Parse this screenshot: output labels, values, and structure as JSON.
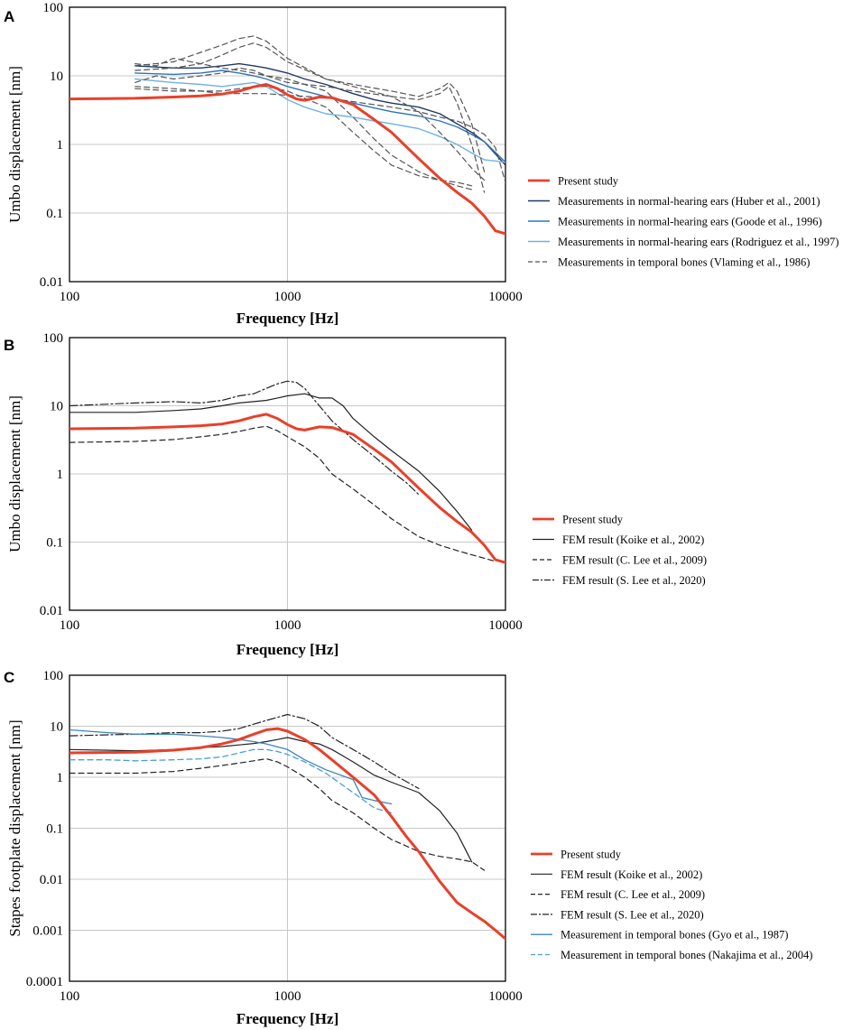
{
  "colors": {
    "present": "#e8402a",
    "huber": "#1f3864",
    "goode": "#2e75b6",
    "rodriguez": "#6db3e6",
    "vlaming": "#555555",
    "koike": "#222222",
    "clee": "#222222",
    "slee": "#222222",
    "gyo": "#3d85b8",
    "nakajima": "#4a9fd8",
    "grid": "#c8c8c8"
  },
  "chart_data": [
    {
      "panel": "A",
      "type": "line",
      "xscale": "log",
      "yscale": "log",
      "xlim": [
        100,
        10000
      ],
      "ylim": [
        0.01,
        100
      ],
      "xticks": [
        "100",
        "1000",
        "10000"
      ],
      "yticks": [
        "0.01",
        "0.1",
        "1",
        "10",
        "100"
      ],
      "xlabel": "Frequency [Hz]",
      "ylabel": "Umbo displacement [nm]",
      "legend_position": "right",
      "series": [
        {
          "name": "Present study",
          "color_key": "present",
          "dash": "solid",
          "width": 3,
          "x": [
            100,
            200,
            300,
            400,
            500,
            600,
            700,
            800,
            900,
            1000,
            1100,
            1200,
            1400,
            1600,
            2000,
            2500,
            3000,
            4000,
            5000,
            6000,
            7000,
            8000,
            9000,
            10000
          ],
          "y": [
            4.6,
            4.7,
            4.9,
            5.1,
            5.4,
            6.0,
            6.9,
            7.5,
            6.5,
            5.3,
            4.6,
            4.4,
            4.9,
            4.8,
            3.8,
            2.3,
            1.5,
            0.62,
            0.32,
            0.2,
            0.14,
            0.09,
            0.055,
            0.05
          ]
        },
        {
          "name": "Measurements in normal-hearing ears (Huber et al., 2001)",
          "color_key": "huber",
          "dash": "solid",
          "width": 1.4,
          "x": [
            200,
            300,
            400,
            500,
            600,
            700,
            800,
            1000,
            1200,
            1500,
            2000,
            2500,
            3000,
            4000,
            5000,
            6000,
            7000,
            8000,
            10000
          ],
          "y": [
            14,
            13,
            13,
            14,
            15,
            14,
            13,
            11,
            9,
            7.5,
            5.5,
            4.5,
            4,
            3.5,
            2.8,
            2,
            1.5,
            1.1,
            0.5
          ]
        },
        {
          "name": "Measurements in normal-hearing ears (Goode et al., 1996)",
          "color_key": "goode",
          "dash": "solid",
          "width": 1.4,
          "x": [
            200,
            300,
            400,
            500,
            600,
            700,
            800,
            1000,
            1200,
            1500,
            2000,
            2500,
            3000,
            4000,
            5000,
            6000,
            7000,
            8000,
            10000
          ],
          "y": [
            11,
            10.5,
            11,
            12,
            11,
            10,
            9,
            7,
            6,
            5,
            4,
            3.4,
            3,
            2.6,
            2.2,
            1.8,
            1.4,
            1.1,
            0.55
          ]
        },
        {
          "name": "Measurements in normal-hearing ears (Rodriguez et al., 1997)",
          "color_key": "rodriguez",
          "dash": "solid",
          "width": 1.4,
          "x": [
            200,
            300,
            400,
            500,
            600,
            700,
            800,
            1000,
            1200,
            1500,
            2000,
            2500,
            3000,
            4000,
            5000,
            6000,
            7000,
            8000,
            10000
          ],
          "y": [
            9,
            8,
            7.5,
            7,
            7.5,
            8,
            7,
            4.5,
            3.5,
            2.8,
            2.5,
            2.2,
            2,
            1.7,
            1.3,
            1,
            0.75,
            0.6,
            0.55
          ]
        },
        {
          "name": "Measurements in temporal bones (Vlaming et al., 1986)",
          "color_key": "vlaming",
          "dash": "dash",
          "width": 1.2,
          "group": true,
          "lines": [
            {
              "x": [
                200,
                300,
                400,
                500,
                600,
                700,
                800,
                1000,
                1500,
                2000,
                3000,
                4000,
                5000,
                6000,
                7000,
                8000
              ],
              "y": [
                14,
                16,
                22,
                28,
                35,
                38,
                32,
                18,
                9,
                7,
                5,
                3,
                1.5,
                0.8,
                0.45,
                0.3
              ]
            },
            {
              "x": [
                200,
                300,
                400,
                500,
                600,
                700,
                800,
                1000,
                1500,
                2000,
                3000,
                4000,
                5000,
                5500,
                6000,
                7000,
                8000
              ],
              "y": [
                12,
                13,
                15,
                20,
                26,
                30,
                26,
                16,
                9,
                7.5,
                6,
                5,
                6.5,
                8,
                6,
                2,
                0.4
              ]
            },
            {
              "x": [
                200,
                250,
                300,
                400,
                500,
                600,
                700,
                800,
                1000,
                1500,
                2000,
                3000,
                4000,
                5000,
                5500,
                6000,
                7000,
                8000
              ],
              "y": [
                8,
                10,
                9,
                10,
                11,
                13,
                12,
                10,
                8,
                7,
                6,
                5,
                4.5,
                5.5,
                7,
                4,
                1,
                0.2
              ]
            },
            {
              "x": [
                200,
                300,
                400,
                500,
                600,
                700,
                800,
                1000,
                1500,
                2000,
                3000,
                4000,
                5000,
                6000,
                7000,
                8000,
                9000,
                10000
              ],
              "y": [
                7,
                6.5,
                6,
                5.5,
                5.5,
                5.5,
                5.5,
                5.2,
                4.8,
                4.2,
                3.5,
                3,
                2.5,
                2.2,
                1.8,
                1.4,
                0.9,
                0.28
              ]
            },
            {
              "x": [
                200,
                300,
                400,
                500,
                600,
                700,
                800,
                1000,
                1500,
                2000,
                2500,
                3000,
                4000,
                5000,
                6000,
                7000
              ],
              "y": [
                6.5,
                6,
                6,
                6,
                6.5,
                7,
                7,
                6,
                3.5,
                1.5,
                0.8,
                0.5,
                0.35,
                0.3,
                0.28,
                0.25
              ]
            },
            {
              "x": [
                200,
                250,
                300,
                400,
                500,
                600,
                700,
                800,
                1000,
                1500,
                2000,
                2500,
                3000,
                4000,
                5000,
                6000,
                7000
              ],
              "y": [
                15,
                14,
                18,
                15,
                13,
                12,
                11,
                10,
                9,
                6,
                2.5,
                1.2,
                0.7,
                0.4,
                0.3,
                0.25,
                0.22
              ]
            }
          ]
        }
      ]
    },
    {
      "panel": "B",
      "type": "line",
      "xscale": "log",
      "yscale": "log",
      "xlim": [
        100,
        10000
      ],
      "ylim": [
        0.01,
        100
      ],
      "xticks": [
        "100",
        "1000",
        "10000"
      ],
      "yticks": [
        "0.01",
        "0.1",
        "1",
        "10",
        "100"
      ],
      "xlabel": "Frequency [Hz]",
      "ylabel": "Umbo displacement [nm]",
      "legend_position": "right",
      "series": [
        {
          "name": "Present study",
          "color_key": "present",
          "dash": "solid",
          "width": 3,
          "x": [
            100,
            200,
            300,
            400,
            500,
            600,
            700,
            800,
            900,
            1000,
            1100,
            1200,
            1400,
            1600,
            2000,
            2500,
            3000,
            4000,
            5000,
            6000,
            7000,
            8000,
            9000,
            10000
          ],
          "y": [
            4.6,
            4.7,
            4.9,
            5.1,
            5.4,
            6.0,
            6.9,
            7.5,
            6.5,
            5.3,
            4.6,
            4.4,
            4.9,
            4.8,
            3.8,
            2.3,
            1.5,
            0.62,
            0.32,
            0.2,
            0.14,
            0.09,
            0.055,
            0.05
          ]
        },
        {
          "name": "FEM result (Koike et al., 2002)",
          "color_key": "koike",
          "dash": "solid",
          "width": 1.2,
          "x": [
            100,
            200,
            300,
            400,
            500,
            600,
            700,
            800,
            900,
            1000,
            1200,
            1400,
            1600,
            1800,
            2000,
            2500,
            3000,
            4000,
            5000,
            6000,
            7000
          ],
          "y": [
            8,
            8,
            8.5,
            9,
            10,
            11,
            11.5,
            12,
            13,
            14,
            15,
            13,
            13,
            10,
            6.5,
            3.5,
            2.2,
            1.1,
            0.55,
            0.28,
            0.15
          ]
        },
        {
          "name": "FEM result (C. Lee et al., 2009)",
          "color_key": "clee",
          "dash": "dash",
          "width": 1.2,
          "x": [
            100,
            200,
            300,
            400,
            500,
            600,
            700,
            800,
            900,
            1000,
            1200,
            1400,
            1600,
            2000,
            2500,
            3000,
            4000,
            5000,
            6000,
            7000,
            8000,
            9000
          ],
          "y": [
            2.9,
            3.0,
            3.2,
            3.5,
            3.8,
            4.2,
            4.7,
            5.0,
            4.3,
            3.5,
            2.5,
            1.7,
            1.0,
            0.6,
            0.35,
            0.22,
            0.12,
            0.09,
            0.075,
            0.065,
            0.058,
            0.052
          ]
        },
        {
          "name": "FEM result (S. Lee et al., 2020)",
          "color_key": "slee",
          "dash": "dashdot",
          "width": 1.2,
          "x": [
            100,
            200,
            300,
            400,
            500,
            600,
            700,
            800,
            900,
            1000,
            1100,
            1200,
            1400,
            1600,
            2000,
            2500,
            3000,
            3500,
            4000
          ],
          "y": [
            10,
            11,
            11.5,
            11,
            12,
            14,
            15,
            18,
            21,
            23,
            22,
            18,
            10,
            6,
            3.2,
            1.8,
            1.1,
            0.75,
            0.5
          ]
        }
      ]
    },
    {
      "panel": "C",
      "type": "line",
      "xscale": "log",
      "yscale": "log",
      "xlim": [
        100,
        10000
      ],
      "ylim": [
        0.0001,
        100
      ],
      "xticks": [
        "100",
        "1000",
        "10000"
      ],
      "yticks": [
        "0.0001",
        "0.001",
        "0.01",
        "0.1",
        "1",
        "10",
        "100"
      ],
      "xlabel": "Frequency [Hz]",
      "ylabel": "Stapes footplate displacement [nm]",
      "legend_position": "right",
      "series": [
        {
          "name": "Present study",
          "color_key": "present",
          "dash": "solid",
          "width": 3,
          "x": [
            100,
            200,
            300,
            400,
            500,
            600,
            700,
            800,
            900,
            1000,
            1200,
            1400,
            1600,
            2000,
            2500,
            3000,
            3500,
            4000,
            5000,
            6000,
            7000,
            8000,
            9000,
            10000
          ],
          "y": [
            3.0,
            3.1,
            3.4,
            3.8,
            4.5,
            5.5,
            7.0,
            8.5,
            9.0,
            8.0,
            5.5,
            3.5,
            2.2,
            1.0,
            0.45,
            0.17,
            0.07,
            0.035,
            0.009,
            0.0035,
            0.0022,
            0.0015,
            0.001,
            0.00068
          ]
        },
        {
          "name": "FEM result (Koike et al., 2002)",
          "color_key": "koike",
          "dash": "solid",
          "width": 1.2,
          "x": [
            100,
            200,
            300,
            400,
            500,
            600,
            700,
            800,
            900,
            1000,
            1200,
            1400,
            1600,
            2000,
            2500,
            3000,
            4000,
            5000,
            6000,
            7000
          ],
          "y": [
            3.5,
            3.3,
            3.5,
            3.8,
            4.0,
            4.3,
            4.6,
            5.0,
            5.5,
            6.0,
            5.0,
            4.5,
            3.5,
            2.0,
            1.1,
            0.8,
            0.5,
            0.22,
            0.08,
            0.022
          ]
        },
        {
          "name": "FEM result (C. Lee et al., 2009)",
          "color_key": "clee",
          "dash": "dash",
          "width": 1.2,
          "x": [
            100,
            200,
            300,
            400,
            500,
            600,
            700,
            800,
            900,
            1000,
            1200,
            1400,
            1600,
            2000,
            2500,
            3000,
            4000,
            5000,
            6000,
            7000,
            8000
          ],
          "y": [
            1.2,
            1.2,
            1.3,
            1.5,
            1.7,
            1.9,
            2.1,
            2.3,
            2.0,
            1.6,
            1.0,
            0.6,
            0.35,
            0.2,
            0.1,
            0.06,
            0.035,
            0.028,
            0.025,
            0.022,
            0.015
          ]
        },
        {
          "name": "FEM result (S. Lee et al., 2020)",
          "color_key": "slee",
          "dash": "dashdot",
          "width": 1.2,
          "x": [
            100,
            200,
            300,
            400,
            500,
            600,
            700,
            800,
            900,
            1000,
            1200,
            1400,
            1600,
            2000,
            2500,
            3000,
            4000
          ],
          "y": [
            6.5,
            7.0,
            7.5,
            7.5,
            8.0,
            9.0,
            11,
            13,
            15,
            17,
            14,
            10,
            6,
            3.5,
            2.0,
            1.2,
            0.6
          ]
        },
        {
          "name": "Measurement in temporal bones (Gyo et al., 1987)",
          "color_key": "gyo",
          "dash": "solid",
          "width": 1.3,
          "x": [
            100,
            150,
            200,
            300,
            400,
            500,
            600,
            700,
            800,
            1000,
            1200,
            1500,
            2000,
            2200,
            2500,
            3000
          ],
          "y": [
            8.5,
            7.5,
            7.0,
            7.0,
            6.5,
            6.0,
            5.5,
            5.0,
            4.5,
            3.5,
            2.2,
            1.4,
            0.9,
            0.4,
            0.35,
            0.3
          ]
        },
        {
          "name": "Measurement in temporal bones (Nakajima et al., 2004)",
          "color_key": "nakajima",
          "dash": "dash",
          "width": 1.3,
          "x": [
            100,
            150,
            200,
            300,
            400,
            500,
            600,
            700,
            800,
            900,
            1000,
            1200,
            1500,
            2000,
            2500,
            3000
          ],
          "y": [
            2.2,
            2.2,
            2.1,
            2.2,
            2.3,
            2.5,
            3.0,
            3.5,
            3.5,
            3.2,
            2.8,
            2.0,
            1.2,
            0.5,
            0.25,
            0.2
          ]
        }
      ]
    }
  ]
}
